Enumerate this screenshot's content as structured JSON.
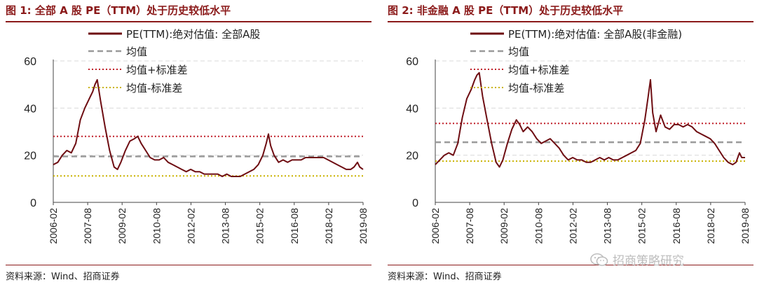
{
  "figures": [
    {
      "title": "图 1:  全部 A 股 PE（TTM）处于历史较低水平",
      "source": "资料来源：Wind、招商证券"
    },
    {
      "title": "图 2:  非金融 A 股 PE（TTM）处于历史较低水平",
      "source": "资料来源：Wind、招商证券"
    }
  ],
  "watermark": {
    "text": "招商策略研究",
    "icon": "wechat-icon"
  },
  "colors": {
    "pe": "#6e0d12",
    "mean": "#9a9a9a",
    "upper": "#c0202a",
    "lower": "#c9b200",
    "grid": "#d9d9d9",
    "title": "#8b1a1a"
  },
  "chart_data": [
    {
      "type": "line",
      "title": "全部 A 股 PE（TTM）处于历史较低水平",
      "ylim": [
        0,
        60
      ],
      "yticks": [
        0,
        20,
        40,
        60
      ],
      "x_tick_labels": [
        "2006-02",
        "2007-08",
        "2009-02",
        "2010-08",
        "2012-02",
        "2013-08",
        "2015-02",
        "2016-08",
        "2018-02",
        "2019-08"
      ],
      "xrange": [
        2006.0,
        2019.75
      ],
      "grid": "horizontal",
      "legend": "top",
      "legend_labels": [
        "PE(TTM):绝对估值: 全部A股",
        "均值",
        "均值+标准差",
        "均值-标准差"
      ],
      "mean": 19.5,
      "mean_plus_std": 28.0,
      "mean_minus_std": 11.2,
      "series": [
        {
          "name": "PE(TTM):绝对估值: 全部A股",
          "x": [
            2006.0,
            2006.2,
            2006.4,
            2006.6,
            2006.8,
            2007.0,
            2007.2,
            2007.4,
            2007.6,
            2007.75,
            2007.85,
            2007.95,
            2008.1,
            2008.3,
            2008.5,
            2008.7,
            2008.85,
            2009.0,
            2009.2,
            2009.4,
            2009.6,
            2009.75,
            2009.9,
            2010.1,
            2010.3,
            2010.5,
            2010.7,
            2010.9,
            2011.1,
            2011.3,
            2011.5,
            2011.7,
            2011.9,
            2012.1,
            2012.3,
            2012.5,
            2012.7,
            2012.9,
            2013.1,
            2013.3,
            2013.5,
            2013.7,
            2013.9,
            2014.1,
            2014.3,
            2014.5,
            2014.7,
            2014.9,
            2015.1,
            2015.3,
            2015.45,
            2015.55,
            2015.65,
            2015.8,
            2016.0,
            2016.2,
            2016.4,
            2016.6,
            2016.8,
            2017.0,
            2017.2,
            2017.4,
            2017.6,
            2017.8,
            2018.0,
            2018.2,
            2018.4,
            2018.6,
            2018.8,
            2019.0,
            2019.2,
            2019.35,
            2019.5,
            2019.6,
            2019.75
          ],
          "y": [
            16,
            17,
            20,
            22,
            21,
            25,
            35,
            40,
            44,
            47,
            50,
            52,
            43,
            32,
            22,
            15,
            14,
            17,
            22,
            26,
            27,
            28,
            25,
            22,
            19,
            18,
            18,
            19,
            17,
            16,
            15,
            14,
            13,
            14,
            13,
            13,
            12,
            12,
            12,
            12,
            11,
            12,
            11,
            11,
            11,
            12,
            13,
            14,
            16,
            20,
            25,
            29,
            24,
            20,
            17,
            18,
            17,
            18,
            18,
            18,
            19,
            19,
            19,
            19,
            19,
            18,
            17,
            16,
            15,
            14,
            14,
            15,
            17,
            15,
            14
          ]
        }
      ]
    },
    {
      "type": "line",
      "title": "非金融 A 股 PE（TTM）处于历史较低水平",
      "ylim": [
        0,
        60
      ],
      "yticks": [
        0,
        20,
        40,
        60
      ],
      "x_tick_labels": [
        "2006-02",
        "2007-08",
        "2009-02",
        "2010-08",
        "2012-02",
        "2013-08",
        "2015-02",
        "2016-08",
        "2018-02",
        "2019-08"
      ],
      "xrange": [
        2006.0,
        2019.75
      ],
      "grid": "horizontal",
      "legend": "top",
      "legend_labels": [
        "PE(TTM):绝对估值: 全部A股(非金融)",
        "均值",
        "均值+标准差",
        "均值-标准差"
      ],
      "mean": 25.5,
      "mean_plus_std": 33.5,
      "mean_minus_std": 17.5,
      "series": [
        {
          "name": "PE(TTM):绝对估值: 全部A股(非金融)",
          "x": [
            2006.0,
            2006.2,
            2006.4,
            2006.6,
            2006.8,
            2007.0,
            2007.2,
            2007.4,
            2007.6,
            2007.75,
            2007.85,
            2007.95,
            2008.1,
            2008.3,
            2008.5,
            2008.7,
            2008.85,
            2009.0,
            2009.2,
            2009.4,
            2009.6,
            2009.75,
            2009.9,
            2010.1,
            2010.3,
            2010.5,
            2010.7,
            2010.9,
            2011.1,
            2011.3,
            2011.5,
            2011.7,
            2011.9,
            2012.1,
            2012.3,
            2012.5,
            2012.7,
            2012.9,
            2013.1,
            2013.3,
            2013.5,
            2013.7,
            2013.9,
            2014.1,
            2014.3,
            2014.5,
            2014.7,
            2014.9,
            2015.1,
            2015.3,
            2015.45,
            2015.55,
            2015.65,
            2015.8,
            2016.0,
            2016.2,
            2016.4,
            2016.6,
            2016.8,
            2017.0,
            2017.2,
            2017.4,
            2017.6,
            2017.8,
            2018.0,
            2018.2,
            2018.4,
            2018.6,
            2018.8,
            2019.0,
            2019.2,
            2019.35,
            2019.5,
            2019.6,
            2019.75
          ],
          "y": [
            16,
            18,
            20,
            21,
            20,
            25,
            36,
            44,
            48,
            52,
            54,
            55,
            45,
            35,
            25,
            17,
            15,
            18,
            25,
            31,
            35,
            33,
            30,
            32,
            30,
            27,
            25,
            26,
            27,
            25,
            23,
            20,
            18,
            19,
            18,
            18,
            17,
            17,
            18,
            19,
            18,
            19,
            18,
            18,
            19,
            20,
            21,
            22,
            25,
            35,
            45,
            52,
            38,
            30,
            37,
            32,
            31,
            33,
            33,
            32,
            33,
            32,
            30,
            29,
            28,
            27,
            25,
            22,
            19,
            17,
            16,
            17,
            21,
            19,
            19
          ]
        }
      ]
    }
  ]
}
